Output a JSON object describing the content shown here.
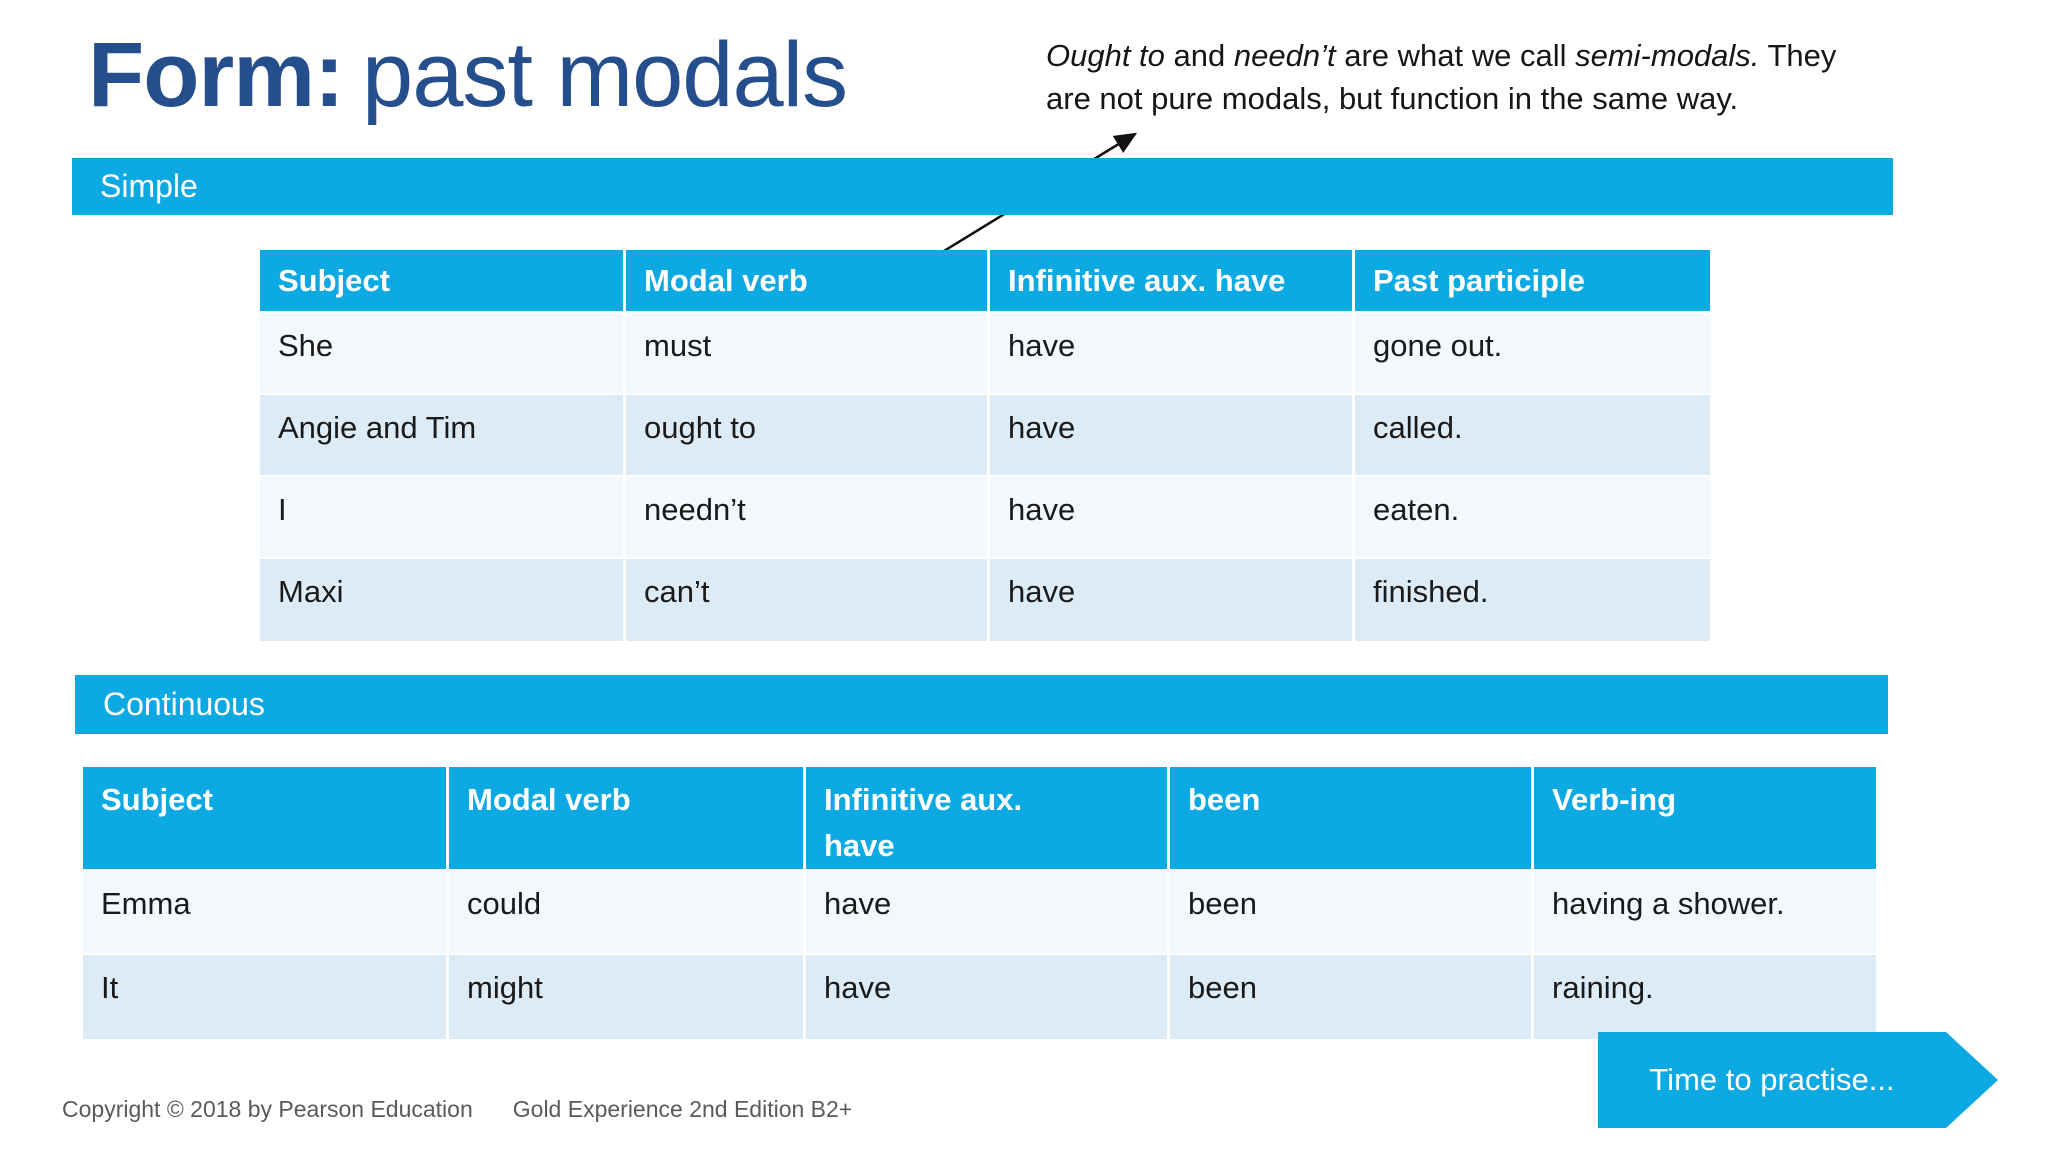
{
  "title": {
    "bold": "Form:",
    "rest": "past modals"
  },
  "note": {
    "segments": [
      {
        "text": "Ought to",
        "italic": true
      },
      {
        "text": " and ",
        "italic": false
      },
      {
        "text": "needn’t",
        "italic": true
      },
      {
        "text": " are what we call ",
        "italic": false
      },
      {
        "text": "semi-modals.",
        "italic": true
      },
      {
        "text": " They",
        "italic": false
      },
      {
        "br": true
      },
      {
        "text": "are not pure modals, but function in the same way.",
        "italic": false
      }
    ]
  },
  "simple": {
    "label": "Simple",
    "headers": [
      "Subject",
      "Modal verb",
      "Infinitive aux. have",
      "Past participle"
    ],
    "rows": [
      [
        "She",
        "must",
        "have",
        "gone out."
      ],
      [
        "Angie and Tim",
        "ought to",
        "have",
        "called."
      ],
      [
        "I",
        "needn’t",
        "have",
        "eaten."
      ],
      [
        "Maxi",
        "can’t",
        "have",
        "finished."
      ]
    ]
  },
  "continuous": {
    "label": "Continuous",
    "headers": [
      "Subject",
      "Modal verb",
      "Infinitive aux. have",
      "been",
      "Verb-ing"
    ],
    "rows": [
      [
        "Emma",
        "could",
        "have",
        "been",
        "having a shower."
      ],
      [
        "It",
        "might",
        "have",
        "been",
        "raining."
      ]
    ]
  },
  "footer": {
    "copyright": "Copyright © 2018 by Pearson Education",
    "edition": "Gold Experience 2nd Edition B2+",
    "cta": "Time to practise..."
  },
  "colors": {
    "accent_cyan": "#0ca9e2",
    "title_navy": "#254e8c",
    "row_light": "#f3f8fc",
    "row_shaded": "#dcebf6",
    "footer_text": "#5a5a5a",
    "arrow_black": "#111111"
  }
}
